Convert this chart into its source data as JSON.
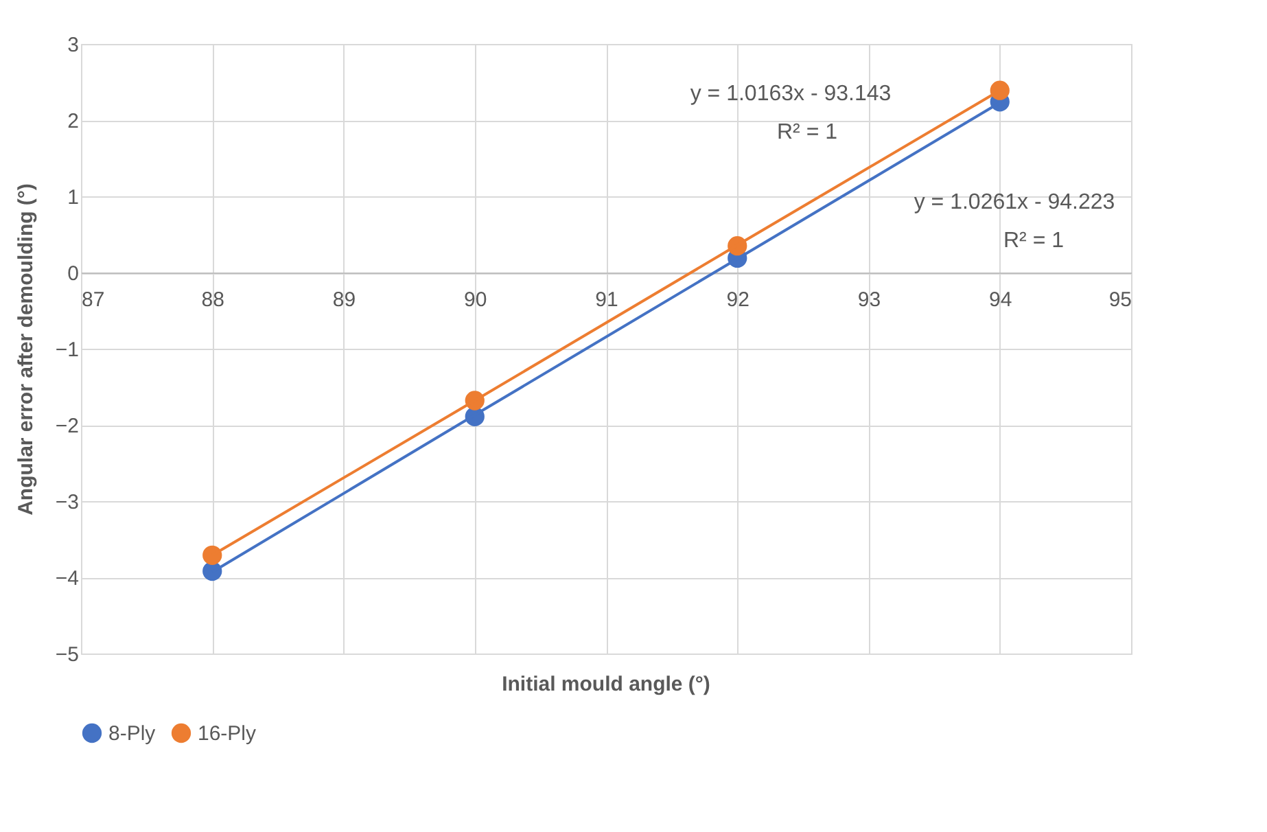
{
  "chart_data": {
    "type": "scatter",
    "xlabel": "Initial mould angle (°)",
    "ylabel": "Angular error after demoulding (°)",
    "x": [
      88,
      90,
      92,
      94
    ],
    "series": [
      {
        "name": "8-Ply",
        "color": "#4472c4",
        "values": [
          -3.92,
          -1.89,
          0.19,
          2.24
        ],
        "marker": "circle"
      },
      {
        "name": "16-Ply",
        "color": "#ed7d31",
        "values": [
          -3.71,
          -1.68,
          0.35,
          2.39
        ],
        "marker": "circle"
      },
      {
        "type": "line",
        "color": "#4472c4",
        "values": [
          -3.93,
          -1.87,
          0.18,
          2.23
        ],
        "marker": "none",
        "line_style": "solid"
      },
      {
        "type": "line",
        "color": "#ed7d31",
        "values": [
          -3.71,
          -1.68,
          0.36,
          2.39
        ],
        "marker": "none",
        "line_style": "solid"
      }
    ],
    "xlim": [
      87,
      95
    ],
    "xticks": [
      87,
      88,
      89,
      90,
      91,
      92,
      93,
      94,
      95
    ],
    "ylim": [
      -5,
      3
    ],
    "yticks": [
      -5,
      -4,
      -3,
      -2,
      -1,
      0,
      1,
      2,
      3
    ],
    "grid": true,
    "legend": "bottom",
    "annotations": [
      "y = 1.0163x - 93.143",
      "R² = 1",
      "y = 1.0261x - 94.223",
      "R² = 1"
    ]
  }
}
